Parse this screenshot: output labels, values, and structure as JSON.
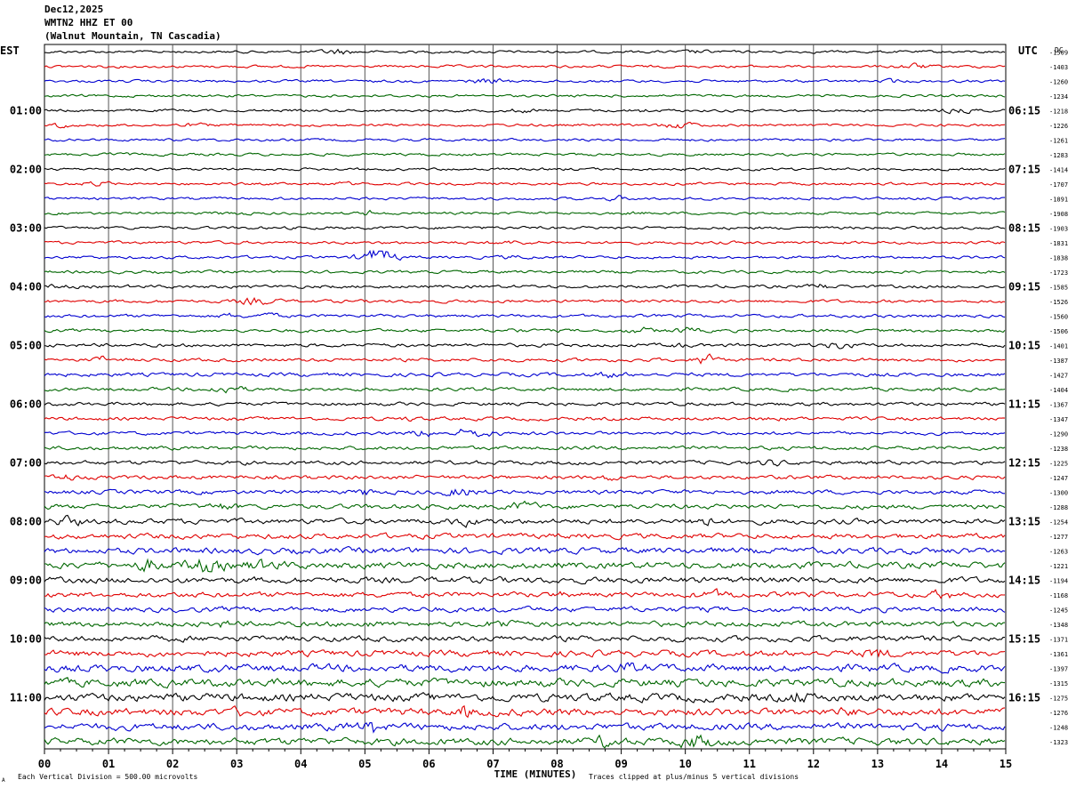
{
  "header": {
    "date": "Dec12,2025",
    "station": "WMTN2 HHZ ET 00",
    "location": "(Walnut Mountain, TN Cascadia)"
  },
  "left_tz": "EST",
  "right_tz": "UTC",
  "dc_label": "DC",
  "chart_data": {
    "type": "line",
    "title": "Dec12,2025",
    "xlabel": "TIME (MINUTES)",
    "x_ticks": [
      "00",
      "01",
      "02",
      "03",
      "04",
      "05",
      "06",
      "07",
      "08",
      "09",
      "10",
      "11",
      "12",
      "13",
      "14",
      "15"
    ],
    "xlim": [
      0,
      15
    ],
    "left_hour_labels": [
      "01:00",
      "02:00",
      "03:00",
      "04:00",
      "05:00",
      "06:00",
      "07:00",
      "08:00",
      "09:00",
      "10:00",
      "11:00"
    ],
    "right_hour_labels": [
      "06:15",
      "07:15",
      "08:15",
      "09:15",
      "10:15",
      "11:15",
      "12:15",
      "13:15",
      "14:15",
      "15:15",
      "16:15"
    ],
    "trace_colors": [
      "#000000",
      "#e00000",
      "#0000d0",
      "#006600"
    ],
    "dc_offsets": [
      "-1509",
      "-1403",
      "-1260",
      "-1234",
      "-1218",
      "-1226",
      "-1261",
      "-1283",
      "-1414",
      "-1707",
      "-1891",
      "-1908",
      "-1903",
      "-1831",
      "-1838",
      "-1723",
      "-1585",
      "-1526",
      "-1560",
      "-1506",
      "-1401",
      "-1387",
      "-1427",
      "-1404",
      "-1367",
      "-1347",
      "-1290",
      "-1238",
      "-1225",
      "-1247",
      "-1300",
      "-1288",
      "-1254",
      "-1277",
      "-1263",
      "-1221",
      "-1194",
      "-1168",
      "-1245",
      "-1348",
      "-1371",
      "-1361",
      "-1397",
      "-1315",
      "-1275",
      "-1276",
      "-1248",
      "-1323"
    ],
    "rows_count": 48,
    "amplitude_level": [
      1,
      1,
      1,
      1,
      1,
      1,
      1,
      1,
      1,
      1,
      1,
      1,
      1.1,
      1.1,
      1.1,
      1.1,
      1.2,
      1.2,
      1.2,
      1.2,
      1.3,
      1.3,
      1.4,
      1.3,
      1.3,
      1.3,
      1.3,
      1.4,
      1.5,
      1.5,
      1.6,
      1.8,
      2.0,
      2.0,
      2.3,
      2.5,
      2.3,
      2.0,
      2.0,
      2.0,
      2.2,
      2.3,
      2.8,
      3.0,
      3.0,
      2.8,
      2.6,
      2.6
    ]
  },
  "footer": {
    "scale_note": "Each Vertical Division =  500.00 microvolts",
    "clip_note": "Traces clipped at plus/minus 5 vertical divisions",
    "corner_glyph": "A"
  }
}
